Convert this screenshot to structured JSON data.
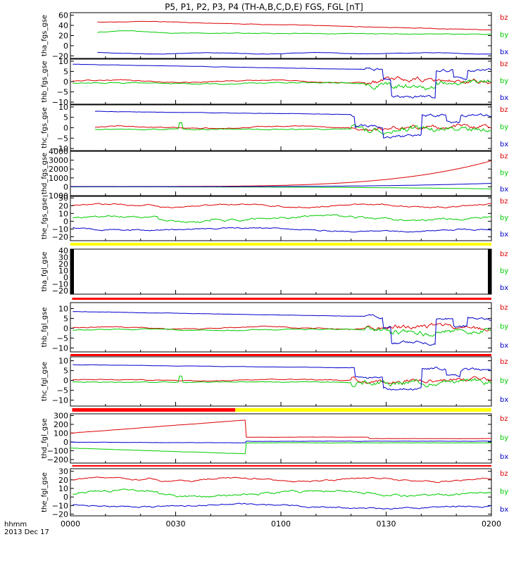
{
  "title": "P5, P1, P2, P3, P4 (TH-A,B,C,D,E) FGS, FGL [nT]",
  "footer": {
    "time_label": "hhmm",
    "date_label": "2013 Dec 17",
    "x_ticks": [
      "0000",
      "0030",
      "0100",
      "0130",
      "0200"
    ]
  },
  "colors": {
    "bx": "#0000cc",
    "by": "#00cc00",
    "bz": "#dd0000",
    "bar_yellow": "#ffff00",
    "bar_red": "#ff0000"
  },
  "chart_data": [
    {
      "type": "line",
      "ylabel": "tha_fgs_gse",
      "ylim": [
        -25,
        65
      ],
      "y_ticks": [
        "60",
        "40",
        "20",
        "0",
        "−20"
      ],
      "legend": [
        "bz",
        "by",
        "bx"
      ],
      "x_start_min": 7.5,
      "series": [
        {
          "name": "bz",
          "color": "#dd0000",
          "profile": "tha_bz"
        },
        {
          "name": "by",
          "color": "#00cc00",
          "profile": "tha_by"
        },
        {
          "name": "bx",
          "color": "#0000cc",
          "profile": "tha_bx"
        }
      ]
    },
    {
      "type": "line",
      "ylabel": "thb_fgs_gse",
      "ylim": [
        -11,
        11
      ],
      "y_ticks": [
        "10",
        "5",
        "0",
        "−5",
        "−10"
      ],
      "legend": [
        "bz",
        "by",
        "bx"
      ],
      "x_start_min": 0.5,
      "series": [
        {
          "name": "bz",
          "color": "#dd0000",
          "profile": "thb_bz"
        },
        {
          "name": "by",
          "color": "#00cc00",
          "profile": "thb_by"
        },
        {
          "name": "bx",
          "color": "#0000cc",
          "profile": "thb_bx"
        }
      ]
    },
    {
      "type": "line",
      "ylabel": "thc_fgs_gse",
      "ylim": [
        -11,
        11
      ],
      "y_ticks": [
        "10",
        "5",
        "0",
        "−5",
        "−10"
      ],
      "legend": [
        "bz",
        "by",
        "bx"
      ],
      "x_start_min": 7,
      "series": [
        {
          "name": "bz",
          "color": "#dd0000",
          "profile": "thc_bz"
        },
        {
          "name": "by",
          "color": "#00cc00",
          "profile": "thc_by"
        },
        {
          "name": "bx",
          "color": "#0000cc",
          "profile": "thc_bx"
        }
      ]
    },
    {
      "type": "line",
      "ylabel": "thd_fgs_gse",
      "ylim": [
        -1000,
        4000
      ],
      "y_ticks": [
        "4000",
        "3000",
        "2000",
        "1000",
        "0",
        "−1000"
      ],
      "legend": [
        "bz",
        "by",
        "bx"
      ],
      "x_start_min": 0,
      "series": [
        {
          "name": "bz",
          "color": "#dd0000",
          "profile": "thd_bz"
        },
        {
          "name": "by",
          "color": "#00cc00",
          "profile": "thd_by"
        },
        {
          "name": "bx",
          "color": "#0000cc",
          "profile": "thd_bx"
        }
      ]
    },
    {
      "type": "line",
      "ylabel": "the_fgs_gse",
      "ylim": [
        -25,
        32
      ],
      "y_ticks": [
        "30",
        "20",
        "10",
        "0",
        "−10",
        "−20"
      ],
      "legend": [
        "bz",
        "by",
        "bx"
      ],
      "x_start_min": 0.5,
      "series": [
        {
          "name": "bz",
          "color": "#dd0000",
          "profile": "the_bz"
        },
        {
          "name": "by",
          "color": "#00cc00",
          "profile": "the_by"
        },
        {
          "name": "bx",
          "color": "#0000cc",
          "profile": "the_bx"
        }
      ],
      "status_bar": [
        {
          "from": 0,
          "to": 120,
          "color": "#ffff00"
        }
      ]
    },
    {
      "type": "line",
      "ylabel": "tha_fgl_gse",
      "ylim": [
        -25,
        42
      ],
      "y_ticks": [
        "40",
        "30",
        "20",
        "10",
        "0",
        "−10",
        "−20"
      ],
      "legend": [
        "bz",
        "by",
        "bx"
      ],
      "x_start_min": 0,
      "series": [],
      "status_bar": [
        {
          "from": 0.5,
          "to": 120,
          "color": "#ff0000"
        }
      ]
    },
    {
      "type": "line",
      "ylabel": "thb_fgl_gse",
      "ylim": [
        -12,
        13
      ],
      "y_ticks": [
        "10",
        "5",
        "0",
        "−5",
        "−10"
      ],
      "legend": [
        "bz",
        "by",
        "bx"
      ],
      "x_start_min": 0.5,
      "series": [
        {
          "name": "bz",
          "color": "#dd0000",
          "profile": "thb_bz"
        },
        {
          "name": "by",
          "color": "#00cc00",
          "profile": "thb_by"
        },
        {
          "name": "bx",
          "color": "#0000cc",
          "profile": "thb_bx"
        }
      ],
      "status_bar": [
        {
          "from": 0,
          "to": 120,
          "color": "#ff0000"
        }
      ]
    },
    {
      "type": "line",
      "ylabel": "thc_fgl_gse",
      "ylim": [
        -13,
        12
      ],
      "y_ticks": [
        "10",
        "5",
        "0",
        "−5",
        "−10"
      ],
      "legend": [
        "bz",
        "by",
        "bx"
      ],
      "x_start_min": 0.5,
      "series": [
        {
          "name": "bz",
          "color": "#dd0000",
          "profile": "thc_bz"
        },
        {
          "name": "by",
          "color": "#00cc00",
          "profile": "thc_by"
        },
        {
          "name": "bx",
          "color": "#0000cc",
          "profile": "thc_bx"
        }
      ],
      "status_bar": [
        {
          "from": 0.5,
          "to": 47,
          "color": "#ff0000"
        },
        {
          "from": 47,
          "to": 120,
          "color": "#ffff00"
        }
      ]
    },
    {
      "type": "line",
      "ylabel": "thd_fgl_gse",
      "ylim": [
        -240,
        320
      ],
      "y_ticks": [
        "300",
        "200",
        "100",
        "0",
        "−100",
        "−200"
      ],
      "legend": [
        "bz",
        "by",
        "bx"
      ],
      "x_start_min": 0,
      "series": [
        {
          "name": "bz",
          "color": "#dd0000",
          "profile": "thd_fgl_bz"
        },
        {
          "name": "by",
          "color": "#00cc00",
          "profile": "thd_fgl_by"
        },
        {
          "name": "bx",
          "color": "#0000cc",
          "profile": "thd_fgl_bx"
        }
      ],
      "status_bar": [
        {
          "from": 0.5,
          "to": 120,
          "color": "#ff0000"
        }
      ]
    },
    {
      "type": "line",
      "ylabel": "the_fgl_gse",
      "ylim": [
        -22,
        33
      ],
      "y_ticks": [
        "30",
        "20",
        "10",
        "0",
        "−10",
        "−20"
      ],
      "legend": [
        "bz",
        "by",
        "bx"
      ],
      "x_start_min": 0.5,
      "series": [
        {
          "name": "bz",
          "color": "#dd0000",
          "profile": "the_bz"
        },
        {
          "name": "by",
          "color": "#00cc00",
          "profile": "the_by"
        },
        {
          "name": "bx",
          "color": "#0000cc",
          "profile": "the_bx"
        }
      ]
    }
  ]
}
